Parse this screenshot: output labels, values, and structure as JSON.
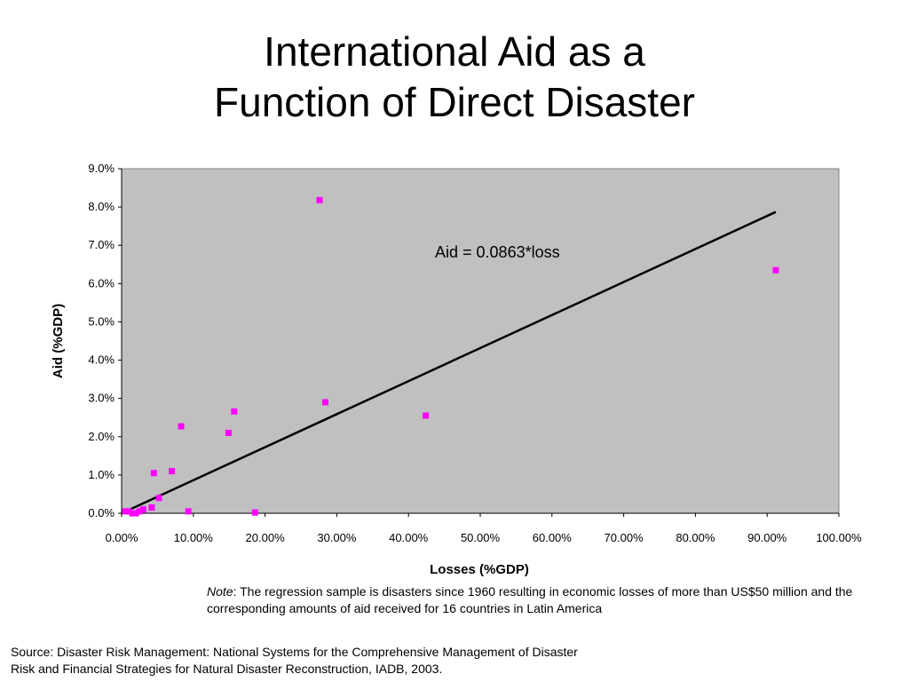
{
  "slide": {
    "title_lines": [
      "International Aid as a",
      "Function of Direct Disaster"
    ],
    "note_label": "Note",
    "note_text": ": The regression sample is disasters since 1960 resulting in economic losses of more than US$50 million and the corresponding amounts of aid received for 16 countries in Latin America",
    "source_lines": [
      "Source: Disaster Risk Management: National Systems for the Comprehensive Management of Disaster",
      "Risk and Financial Strategies for Natural Disaster Reconstruction, IADB, 2003."
    ]
  },
  "chart_data": {
    "type": "scatter",
    "xlabel": "Losses (%GDP)",
    "ylabel": "Aid (%GDP)",
    "xlim": [
      0,
      100
    ],
    "ylim": [
      0,
      9
    ],
    "x_ticks": [
      "0.00%",
      "10.00%",
      "20.00%",
      "30.00%",
      "40.00%",
      "50.00%",
      "60.00%",
      "70.00%",
      "80.00%",
      "90.00%",
      "100.00%"
    ],
    "y_ticks": [
      "0.0%",
      "1.0%",
      "2.0%",
      "3.0%",
      "4.0%",
      "5.0%",
      "6.0%",
      "7.0%",
      "8.0%",
      "9.0%"
    ],
    "grid": false,
    "plot_background": "#c0c0c0",
    "marker_color": "#ff00ff",
    "line_color": "#000000",
    "points": [
      {
        "x": 0.5,
        "y": 0.05
      },
      {
        "x": 1.0,
        "y": 0.05
      },
      {
        "x": 1.5,
        "y": 0.0
      },
      {
        "x": 2.0,
        "y": 0.0
      },
      {
        "x": 2.5,
        "y": 0.05
      },
      {
        "x": 3.0,
        "y": 0.1
      },
      {
        "x": 4.2,
        "y": 0.15
      },
      {
        "x": 4.5,
        "y": 1.05
      },
      {
        "x": 5.2,
        "y": 0.4
      },
      {
        "x": 7.0,
        "y": 1.1
      },
      {
        "x": 8.3,
        "y": 2.27
      },
      {
        "x": 9.3,
        "y": 0.05
      },
      {
        "x": 14.9,
        "y": 2.1
      },
      {
        "x": 15.7,
        "y": 2.66
      },
      {
        "x": 18.6,
        "y": 0.02
      },
      {
        "x": 27.6,
        "y": 8.18
      },
      {
        "x": 28.4,
        "y": 2.9
      },
      {
        "x": 42.4,
        "y": 2.55
      },
      {
        "x": 91.2,
        "y": 6.35
      }
    ],
    "regression": {
      "label": "Aid = 0.0863*loss",
      "slope": 0.0863,
      "x_range": [
        0,
        91.2
      ]
    }
  }
}
